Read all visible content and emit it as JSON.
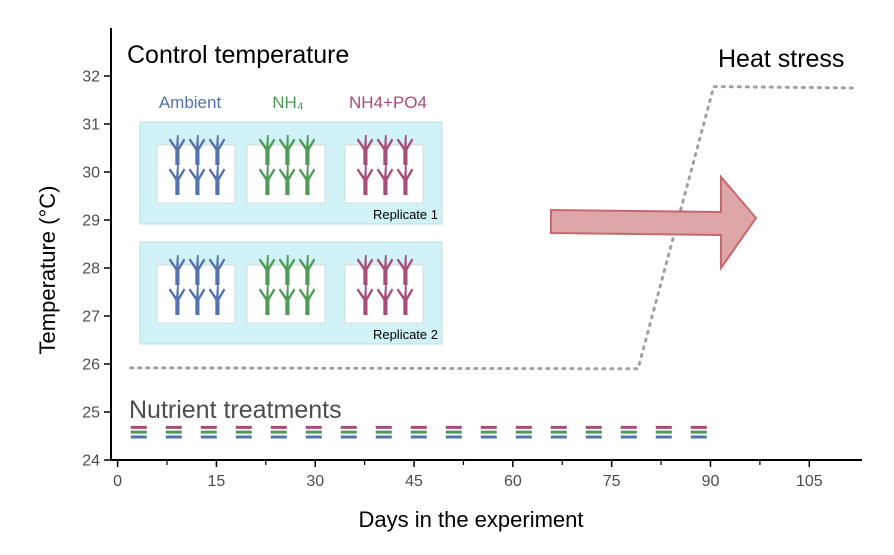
{
  "chart_data": {
    "type": "line",
    "xlabel": "Days in the experiment",
    "ylabel": "Temperature (°C)",
    "xlim": [
      -1,
      113
    ],
    "ylim": [
      24,
      33
    ],
    "x_ticks": [
      0,
      15,
      30,
      45,
      60,
      75,
      90,
      105
    ],
    "y_ticks": [
      24,
      25,
      26,
      27,
      28,
      29,
      30,
      31,
      32
    ],
    "grid": false,
    "series": [
      {
        "style": "dotted",
        "color": "#a0a0a0",
        "x": [
          2,
          79,
          90.5,
          112
        ],
        "y": [
          25.92,
          25.9,
          31.78,
          31.75
        ]
      }
    ],
    "nutrient_lines": {
      "x_range": [
        2,
        90
      ],
      "levels": [
        {
          "y": 24.68,
          "color": "#a64d79"
        },
        {
          "y": 24.58,
          "color": "#4e9b57"
        },
        {
          "y": 24.48,
          "color": "#5473ad"
        }
      ]
    },
    "annotations": {
      "control_temperature": "Control temperature",
      "heat_stress": "Heat stress",
      "nutrient_treatments": "Nutrient treatments",
      "treatments": [
        {
          "label": "Ambient",
          "color": "#5473ad"
        },
        {
          "label": "NH₄",
          "color": "#4e9b57"
        },
        {
          "label": "NH4+PO4",
          "color": "#a64d79"
        }
      ],
      "replicates": [
        "Replicate 1",
        "Replicate 2"
      ]
    },
    "colors": {
      "arrow_fill": "#dea6a9",
      "arrow_stroke": "#c8686c",
      "tank_fill": "#d1f2f6",
      "tank_stroke": "#b8dde3"
    }
  }
}
